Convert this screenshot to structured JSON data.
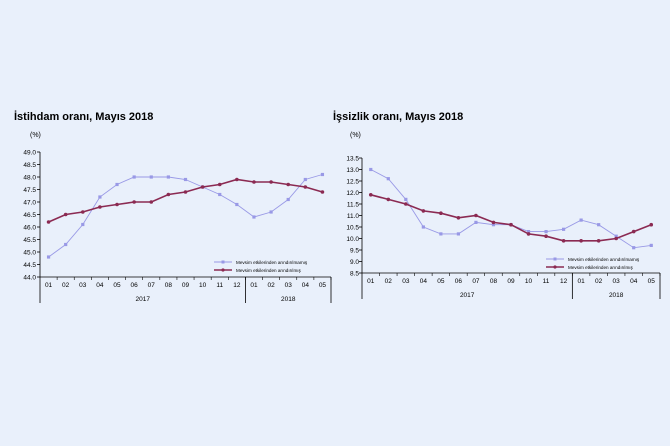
{
  "chart_data": [
    {
      "type": "line",
      "title": "İstihdam oranı, Mayıs 2018",
      "ylabel": "(%)",
      "ylim": [
        44.0,
        49.0
      ],
      "ystep": 0.5,
      "categories": [
        "01",
        "02",
        "03",
        "04",
        "05",
        "06",
        "07",
        "08",
        "09",
        "10",
        "11",
        "12",
        "01",
        "02",
        "03",
        "04",
        "05"
      ],
      "year_groups": [
        {
          "label": "2017",
          "count": 12
        },
        {
          "label": "2018",
          "count": 5
        }
      ],
      "series": [
        {
          "name": "Mevsim etkilerinden arındırılmamış",
          "color": "#9999e6",
          "values": [
            44.8,
            45.3,
            46.1,
            47.2,
            47.7,
            48.0,
            48.0,
            48.0,
            47.9,
            47.6,
            47.3,
            46.9,
            46.4,
            46.6,
            47.1,
            47.9,
            48.1
          ]
        },
        {
          "name": "Mevsim etkilerinden arındırılmış",
          "color": "#8b2a52",
          "values": [
            46.2,
            46.5,
            46.6,
            46.8,
            46.9,
            47.0,
            47.0,
            47.3,
            47.4,
            47.6,
            47.7,
            47.9,
            47.8,
            47.8,
            47.7,
            47.6,
            47.4
          ]
        }
      ]
    },
    {
      "type": "line",
      "title": "İşsizlik oranı, Mayıs 2018",
      "ylabel": "(%)",
      "ylim": [
        8.5,
        13.5
      ],
      "ystep": 0.5,
      "categories": [
        "01",
        "02",
        "03",
        "04",
        "05",
        "06",
        "07",
        "08",
        "09",
        "10",
        "11",
        "12",
        "01",
        "02",
        "03",
        "04",
        "05"
      ],
      "year_groups": [
        {
          "label": "2017",
          "count": 12
        },
        {
          "label": "2018",
          "count": 5
        }
      ],
      "series": [
        {
          "name": "Mevsim etkilerinden arındırılmamış",
          "color": "#9999e6",
          "values": [
            13.0,
            12.6,
            11.7,
            10.5,
            10.2,
            10.2,
            10.7,
            10.6,
            10.6,
            10.3,
            10.3,
            10.4,
            10.8,
            10.6,
            10.1,
            9.6,
            9.7
          ]
        },
        {
          "name": "Mevsim etkilerinden arındırılmış",
          "color": "#8b2a52",
          "values": [
            11.9,
            11.7,
            11.5,
            11.2,
            11.1,
            10.9,
            11.0,
            10.7,
            10.6,
            10.2,
            10.1,
            9.9,
            9.9,
            9.9,
            10.0,
            10.3,
            10.6
          ]
        }
      ]
    }
  ]
}
